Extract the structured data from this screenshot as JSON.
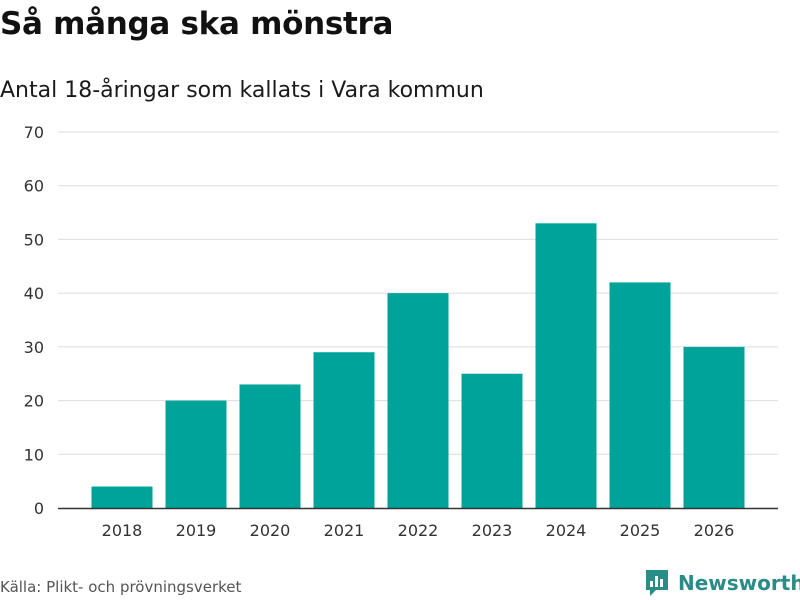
{
  "header": {
    "title": "Så många ska mönstra",
    "subtitle": "Antal 18-åringar som kallats i Vara kommun"
  },
  "footer": {
    "source": "Källa: Plikt- och prövningsverket",
    "brand": "Newsworthy"
  },
  "colors": {
    "bar": "#00a39a",
    "grid": "#dddddd",
    "axis": "#333333",
    "brand": "#2a8c87"
  },
  "chart_data": {
    "type": "bar",
    "title": "Så många ska mönstra",
    "subtitle": "Antal 18-åringar som kallats i Vara kommun",
    "xlabel": "",
    "ylabel": "",
    "categories": [
      "2018",
      "2019",
      "2020",
      "2021",
      "2022",
      "2023",
      "2024",
      "2025",
      "2026"
    ],
    "values": [
      4,
      20,
      23,
      29,
      40,
      25,
      53,
      42,
      30
    ],
    "ylim": [
      0,
      70
    ],
    "yticks": [
      0,
      10,
      20,
      30,
      40,
      50,
      60,
      70
    ],
    "grid": true,
    "legend": "none"
  }
}
